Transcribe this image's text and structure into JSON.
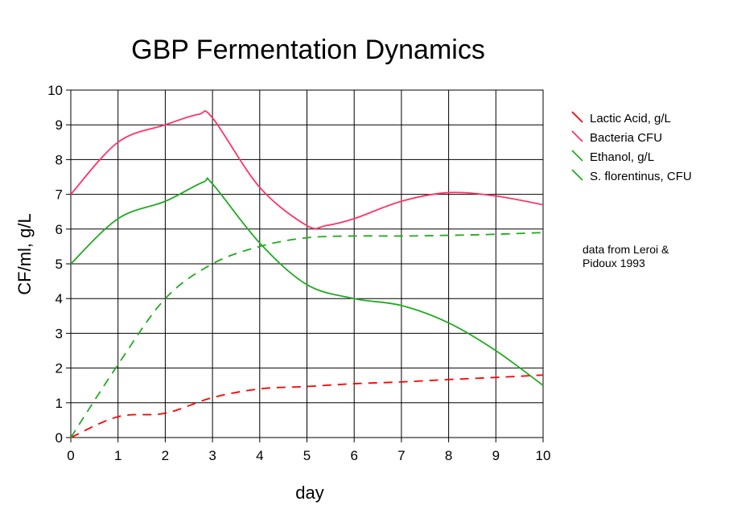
{
  "chart_data": {
    "type": "line",
    "title": "GBP Fermentation Dynamics",
    "xlabel": "day",
    "ylabel": "CF/ml, g/L",
    "xlim": [
      0,
      10
    ],
    "ylim": [
      0,
      10
    ],
    "xticks": [
      "0",
      "1",
      "2",
      "3",
      "4",
      "5",
      "6",
      "7",
      "8",
      "9",
      "10"
    ],
    "yticks": [
      "0",
      "1",
      "2",
      "3",
      "4",
      "5",
      "6",
      "7",
      "8",
      "9",
      "10"
    ],
    "grid": true,
    "legend_position": "right",
    "series": [
      {
        "name": "Lactic Acid, g/L",
        "color": "#ff0000",
        "dash": "dashed",
        "points": [
          [
            0,
            0
          ],
          [
            1,
            0.6
          ],
          [
            2,
            0.7
          ],
          [
            3,
            1.15
          ],
          [
            4,
            1.4
          ],
          [
            5,
            1.47
          ],
          [
            6,
            1.55
          ],
          [
            7,
            1.6
          ],
          [
            8,
            1.67
          ],
          [
            9,
            1.73
          ],
          [
            10,
            1.8
          ]
        ]
      },
      {
        "name": "Bacteria CFU",
        "color": "#ff3366",
        "dash": "solid",
        "points": [
          [
            0,
            7
          ],
          [
            1,
            8.5
          ],
          [
            2,
            9.0
          ],
          [
            2.7,
            9.3
          ],
          [
            3,
            9.2
          ],
          [
            4,
            7.2
          ],
          [
            5,
            6.1
          ],
          [
            5.4,
            6.1
          ],
          [
            6,
            6.3
          ],
          [
            7,
            6.8
          ],
          [
            8,
            7.05
          ],
          [
            9,
            6.95
          ],
          [
            10,
            6.7
          ]
        ]
      },
      {
        "name": "Ethanol, g/L",
        "color": "#22aa22",
        "dash": "dashed",
        "points": [
          [
            0,
            0
          ],
          [
            1,
            2.1
          ],
          [
            2,
            4.0
          ],
          [
            3,
            5.0
          ],
          [
            4,
            5.5
          ],
          [
            5,
            5.75
          ],
          [
            6,
            5.8
          ],
          [
            7,
            5.8
          ],
          [
            8,
            5.82
          ],
          [
            9,
            5.85
          ],
          [
            10,
            5.9
          ]
        ]
      },
      {
        "name": "S. florentinus, CFU",
        "color": "#22aa22",
        "dash": "solid",
        "points": [
          [
            0,
            5
          ],
          [
            1,
            6.3
          ],
          [
            2,
            6.8
          ],
          [
            2.8,
            7.35
          ],
          [
            3,
            7.3
          ],
          [
            4,
            5.6
          ],
          [
            5,
            4.4
          ],
          [
            6,
            4.0
          ],
          [
            7,
            3.8
          ],
          [
            8,
            3.3
          ],
          [
            9,
            2.5
          ],
          [
            10,
            1.5
          ]
        ]
      }
    ],
    "annotation": [
      "data from Leroi &",
      "Pidoux 1993"
    ]
  }
}
